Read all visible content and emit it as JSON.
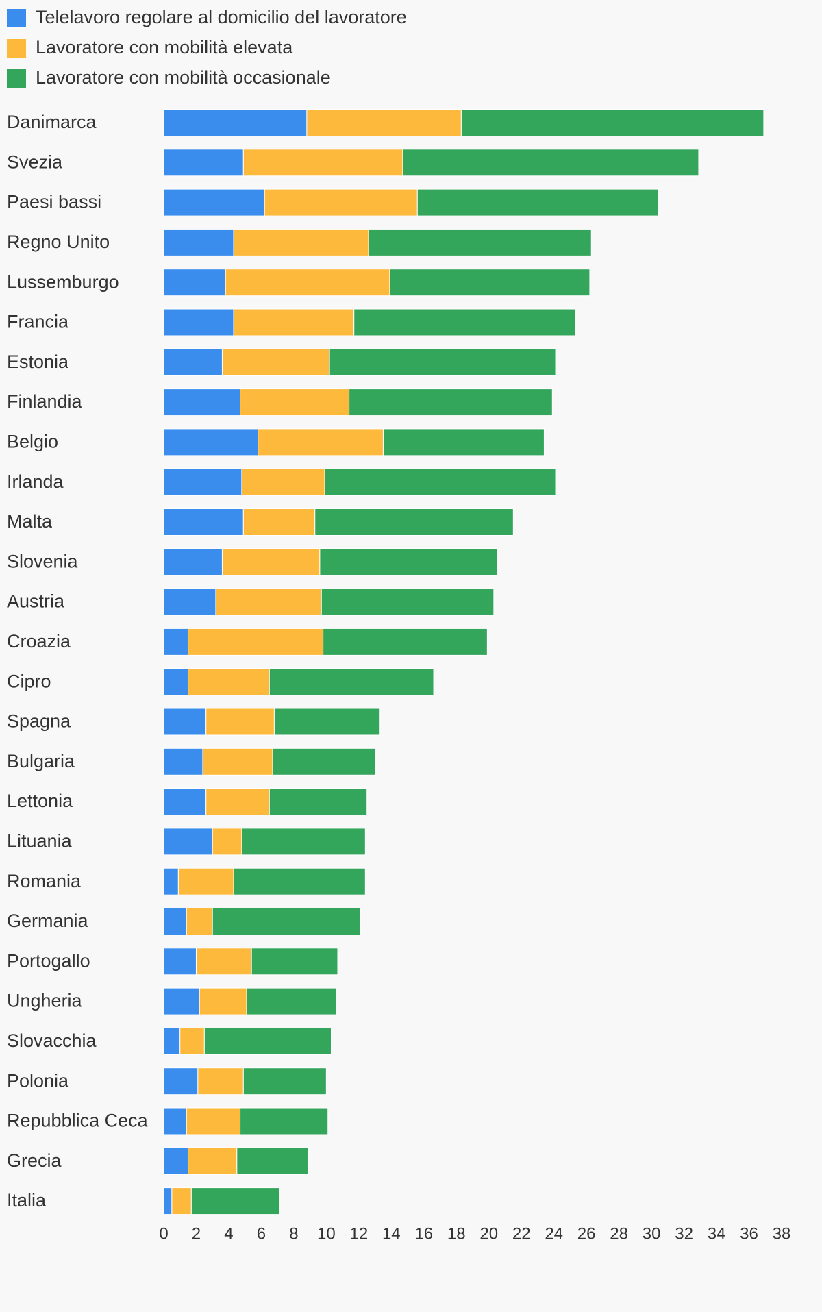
{
  "chart_data": {
    "type": "bar",
    "orientation": "horizontal",
    "stacked": true,
    "title": "",
    "xlabel": "",
    "ylabel": "",
    "xlim": [
      0,
      38
    ],
    "x_ticks": [
      0,
      2,
      4,
      6,
      8,
      10,
      12,
      14,
      16,
      18,
      20,
      22,
      24,
      26,
      28,
      30,
      32,
      34,
      36,
      38
    ],
    "grid": false,
    "legend_position": "top-left",
    "categories": [
      "Danimarca",
      "Svezia",
      "Paesi bassi",
      "Regno Unito",
      "Lussemburgo",
      "Francia",
      "Estonia",
      "Finlandia",
      "Belgio",
      "Irlanda",
      "Malta",
      "Slovenia",
      "Austria",
      "Croazia",
      "Cipro",
      "Spagna",
      "Bulgaria",
      "Lettonia",
      "Lituania",
      "Romania",
      "Germania",
      "Portogallo",
      "Ungheria",
      "Slovacchia",
      "Polonia",
      "Repubblica Ceca",
      "Grecia",
      "Italia"
    ],
    "series": [
      {
        "name": "Telelavoro regolare al domicilio del lavoratore",
        "color": "#3a8ded",
        "values": [
          8.8,
          4.9,
          6.2,
          4.3,
          3.8,
          4.3,
          3.6,
          4.7,
          5.8,
          4.8,
          4.9,
          3.6,
          3.2,
          1.5,
          1.5,
          2.6,
          2.4,
          2.6,
          3.0,
          0.9,
          1.4,
          2.0,
          2.2,
          1.0,
          2.1,
          1.4,
          1.5,
          0.5
        ]
      },
      {
        "name": "Lavoratore con mobilità elevata",
        "color": "#fdb93b",
        "values": [
          9.5,
          9.8,
          9.4,
          8.3,
          10.1,
          7.4,
          6.6,
          6.7,
          7.7,
          5.1,
          4.4,
          6.0,
          6.5,
          8.3,
          5.0,
          4.2,
          4.3,
          3.9,
          1.8,
          3.4,
          1.6,
          3.4,
          2.9,
          1.5,
          2.8,
          3.3,
          3.0,
          1.2
        ]
      },
      {
        "name": "Lavoratore con mobilità occasionale",
        "color": "#34a65b",
        "values": [
          18.6,
          18.2,
          14.8,
          13.7,
          12.3,
          13.6,
          13.9,
          12.5,
          9.9,
          14.2,
          12.2,
          10.9,
          10.6,
          10.1,
          10.1,
          6.5,
          6.3,
          6.0,
          7.6,
          8.1,
          9.1,
          5.3,
          5.5,
          7.8,
          5.1,
          5.4,
          4.4,
          5.4
        ]
      }
    ]
  }
}
